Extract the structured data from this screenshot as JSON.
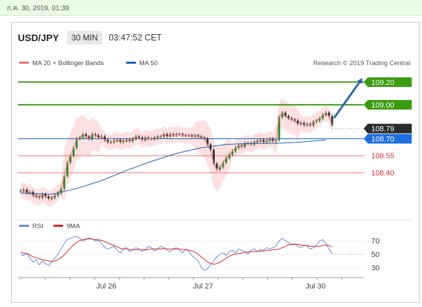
{
  "date_bar": "ก.ค. 30, 2019, 01:39",
  "header": {
    "pair": "USD/JPY",
    "timeframe": "30 MIN",
    "clock": "03:47:52 CET"
  },
  "legend": {
    "bollinger": "MA 20 + Bollinger Bands",
    "ma50": "MA 50",
    "credit": "Research © 2019 Trading Central"
  },
  "rsi_legend": {
    "rsi": "RSI",
    "ma9": "9MA"
  },
  "colors": {
    "resistance": "#3a9d0f",
    "support": "#f07070",
    "pivot": "#1a5fb4",
    "current": "#2b2b2b",
    "arrow": "#2d67a7",
    "rsi": "#6688dd",
    "rsi_ma": "#dd2222"
  },
  "chart_data": [
    {
      "type": "line",
      "title": "USD/JPY",
      "y_range": [
        108.14,
        109.32
      ],
      "x_labels": [
        "Jul 26",
        "Jul 27",
        "Jul 30"
      ],
      "levels": [
        {
          "label": "109.20",
          "value": 109.2,
          "kind": "resistance"
        },
        {
          "label": "109.00",
          "value": 109.0,
          "kind": "resistance"
        },
        {
          "label": "108.79",
          "value": 108.79,
          "kind": "current"
        },
        {
          "label": "108.70",
          "value": 108.7,
          "kind": "pivot"
        },
        {
          "label": "108.55",
          "value": 108.55,
          "kind": "support"
        },
        {
          "label": "108.40",
          "value": 108.4,
          "kind": "support"
        }
      ],
      "series": [
        {
          "name": "MA 20 + Bollinger Bands",
          "values": [
            108.24,
            108.25,
            108.22,
            108.23,
            108.2,
            108.19,
            108.18,
            108.21,
            108.19,
            108.17,
            108.18,
            108.2,
            108.22,
            108.26,
            108.37,
            108.49,
            108.55,
            108.62,
            108.7,
            108.71,
            108.74,
            108.72,
            108.7,
            108.74,
            108.73,
            108.71,
            108.72,
            108.69,
            108.67,
            108.67,
            108.68,
            108.69,
            108.67,
            108.68,
            108.69,
            108.68,
            108.7,
            108.72,
            108.71,
            108.69,
            108.71,
            108.7,
            108.7,
            108.71,
            108.72,
            108.72,
            108.74,
            108.72,
            108.74,
            108.73,
            108.74,
            108.74,
            108.73,
            108.73,
            108.73,
            108.72,
            108.73,
            108.72,
            108.71,
            108.7,
            108.65,
            108.6,
            108.48,
            108.43,
            108.45,
            108.49,
            108.53,
            108.56,
            108.59,
            108.62,
            108.64,
            108.63,
            108.66,
            108.66,
            108.65,
            108.67,
            108.68,
            108.69,
            108.67,
            108.68,
            108.7,
            108.68,
            108.69,
            108.89,
            108.93,
            108.9,
            108.88,
            108.87,
            108.86,
            108.83,
            108.84,
            108.82,
            108.83,
            108.82,
            108.85,
            108.86,
            108.88,
            108.91,
            108.93,
            108.9,
            108.82
          ]
        }
      ],
      "ma50_path": [
        [
          0,
          108.22
        ],
        [
          10,
          108.21
        ],
        [
          18,
          108.26
        ],
        [
          26,
          108.33
        ],
        [
          34,
          108.42
        ],
        [
          42,
          108.5
        ],
        [
          50,
          108.57
        ],
        [
          58,
          108.62
        ],
        [
          66,
          108.65
        ],
        [
          74,
          108.66
        ],
        [
          82,
          108.66
        ],
        [
          90,
          108.67
        ],
        [
          98,
          108.69
        ]
      ]
    },
    {
      "type": "line",
      "title": "RSI",
      "y_ticks": [
        30,
        50,
        70
      ],
      "y_range": [
        18,
        82
      ],
      "current": 50,
      "series": [
        {
          "name": "RSI",
          "values": [
            50,
            48,
            52,
            44,
            38,
            42,
            34,
            40,
            36,
            33,
            38,
            44,
            50,
            58,
            66,
            72,
            74,
            76,
            77,
            74,
            70,
            72,
            75,
            73,
            70,
            71,
            66,
            60,
            58,
            60,
            62,
            56,
            52,
            58,
            60,
            54,
            56,
            60,
            58,
            54,
            56,
            62,
            60,
            55,
            58,
            62,
            60,
            56,
            54,
            58,
            60,
            56,
            52,
            58,
            54,
            48,
            44,
            40,
            30,
            26,
            28,
            34,
            40,
            46,
            50,
            52,
            48,
            54,
            56,
            52,
            58,
            56,
            54,
            50,
            56,
            58,
            54,
            57,
            56,
            60,
            58,
            60,
            62,
            70,
            74,
            70,
            68,
            64,
            66,
            62,
            60,
            64,
            62,
            58,
            60,
            64,
            70,
            72,
            66,
            58,
            50
          ]
        },
        {
          "name": "9MA",
          "values": [
            53,
            52,
            51,
            49,
            46,
            45,
            43,
            42,
            41,
            40,
            39,
            40,
            42,
            45,
            49,
            54,
            59,
            64,
            68,
            71,
            72,
            73,
            73,
            73,
            72,
            72,
            71,
            69,
            67,
            65,
            63,
            61,
            59,
            58,
            58,
            57,
            57,
            57,
            57,
            57,
            57,
            57,
            58,
            58,
            58,
            58,
            59,
            58,
            58,
            58,
            58,
            58,
            57,
            57,
            56,
            55,
            53,
            50,
            46,
            42,
            38,
            36,
            35,
            36,
            38,
            41,
            44,
            47,
            49,
            50,
            51,
            52,
            53,
            53,
            54,
            54,
            54,
            55,
            55,
            56,
            56,
            57,
            57,
            58,
            60,
            62,
            64,
            65,
            65,
            65,
            64,
            63,
            63,
            62,
            62,
            62,
            62,
            63,
            64,
            63,
            61
          ]
        }
      ]
    }
  ]
}
